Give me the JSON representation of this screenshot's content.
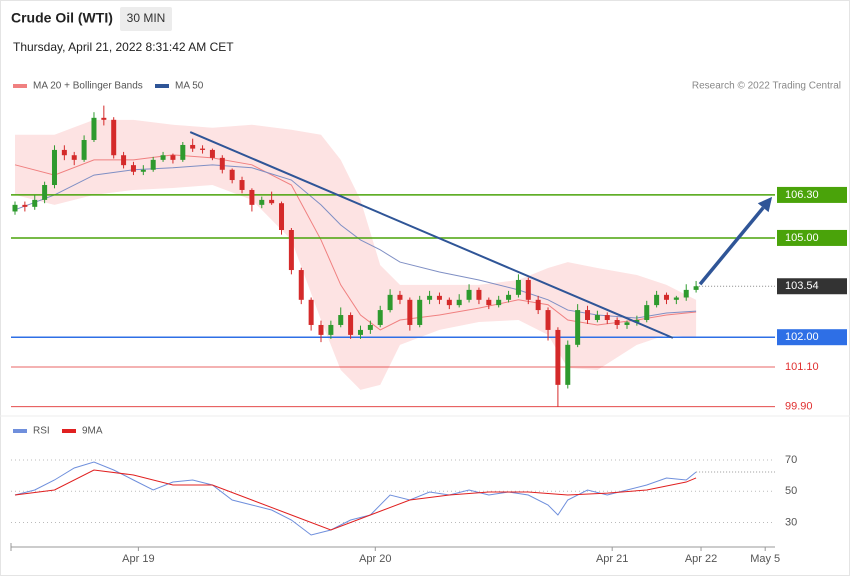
{
  "chart_data": {
    "type": "candlestick",
    "title": "Crude Oil (WTI)",
    "timeframe": "30 MIN",
    "subtitle": "Thursday, April 21, 2022 8:31:42 AM CET",
    "credit": "Research © 2022 Trading Central",
    "xlim": [
      0,
      155
    ],
    "xticks": [
      {
        "value": 25,
        "label": "Apr 19"
      },
      {
        "value": 73,
        "label": "Apr 20"
      },
      {
        "value": 121,
        "label": "Apr 21"
      },
      {
        "value": 139,
        "label": "Apr 22"
      },
      {
        "value": 152,
        "label": "May 5"
      }
    ],
    "ylim": [
      99.8,
      109.32
    ],
    "up_color": "#2e9a2e",
    "down_color": "#d42a2a",
    "x": [
      0,
      2,
      4,
      6,
      8,
      10,
      12,
      14,
      16,
      18,
      20,
      22,
      24,
      26,
      28,
      30,
      32,
      34,
      36,
      38,
      40,
      42,
      44,
      46,
      48,
      50,
      52,
      54,
      56,
      58,
      60,
      62,
      64,
      66,
      68,
      70,
      72,
      74,
      76,
      78,
      80,
      82,
      84,
      86,
      88,
      90,
      92,
      94,
      96,
      98,
      100,
      102,
      104,
      106,
      108,
      110,
      112,
      114,
      116,
      118,
      120,
      122,
      124,
      126,
      128,
      130,
      132,
      134,
      136,
      138
    ],
    "open": [
      105.8,
      106.0,
      105.94,
      106.15,
      106.6,
      107.66,
      107.5,
      107.36,
      107.96,
      108.63,
      108.57,
      107.5,
      107.2,
      107.0,
      107.06,
      107.36,
      107.5,
      107.36,
      107.81,
      107.7,
      107.66,
      107.42,
      107.06,
      106.75,
      106.45,
      106.0,
      106.15,
      106.05,
      105.24,
      104.03,
      103.13,
      102.37,
      102.07,
      102.37,
      102.67,
      102.07,
      102.22,
      102.37,
      102.82,
      103.28,
      103.13,
      102.37,
      103.13,
      103.25,
      103.13,
      102.97,
      103.13,
      103.43,
      103.13,
      102.97,
      103.13,
      103.28,
      103.73,
      103.13,
      102.82,
      102.22,
      100.56,
      101.77,
      102.82,
      102.52,
      102.67,
      102.52,
      102.37,
      102.45,
      102.52,
      102.97,
      103.28,
      103.13,
      103.2,
      103.43
    ],
    "high": [
      106.1,
      106.1,
      106.3,
      106.7,
      107.8,
      107.8,
      107.6,
      108.1,
      108.8,
      109.0,
      108.65,
      107.6,
      107.3,
      107.2,
      107.45,
      107.6,
      107.55,
      107.9,
      108.0,
      107.8,
      107.7,
      107.5,
      107.1,
      106.85,
      106.5,
      106.25,
      106.4,
      106.1,
      105.3,
      104.1,
      103.2,
      102.5,
      102.5,
      102.9,
      102.75,
      102.35,
      102.5,
      102.95,
      103.45,
      103.4,
      103.2,
      103.25,
      103.4,
      103.35,
      103.2,
      103.3,
      103.6,
      103.5,
      103.2,
      103.25,
      103.4,
      103.9,
      103.8,
      103.25,
      102.9,
      102.3,
      101.9,
      103.0,
      102.95,
      102.8,
      102.75,
      102.6,
      102.5,
      102.65,
      103.1,
      103.4,
      103.35,
      103.25,
      103.6,
      103.7
    ],
    "low": [
      105.7,
      105.8,
      105.85,
      106.05,
      106.5,
      107.35,
      107.2,
      107.3,
      107.9,
      108.4,
      107.4,
      107.1,
      106.9,
      106.9,
      107.0,
      107.3,
      107.25,
      107.3,
      107.6,
      107.55,
      107.35,
      106.95,
      106.65,
      106.35,
      105.8,
      105.9,
      106.0,
      105.1,
      103.9,
      103.0,
      102.2,
      101.85,
      101.95,
      102.3,
      101.95,
      101.95,
      102.1,
      102.3,
      102.75,
      103.0,
      102.2,
      102.3,
      103.0,
      103.0,
      102.85,
      102.9,
      103.05,
      103.0,
      102.85,
      102.9,
      103.05,
      103.2,
      103.0,
      102.7,
      101.9,
      99.9,
      100.45,
      101.7,
      102.4,
      102.45,
      102.4,
      102.25,
      102.25,
      102.35,
      102.45,
      102.9,
      103.0,
      103.0,
      103.1,
      103.35
    ],
    "close": [
      106.0,
      105.94,
      106.15,
      106.6,
      107.66,
      107.5,
      107.36,
      107.96,
      108.63,
      108.57,
      107.5,
      107.2,
      107.0,
      107.06,
      107.36,
      107.5,
      107.36,
      107.81,
      107.7,
      107.66,
      107.42,
      107.06,
      106.75,
      106.45,
      106.0,
      106.15,
      106.05,
      105.24,
      104.03,
      103.13,
      102.37,
      102.07,
      102.37,
      102.67,
      102.07,
      102.22,
      102.37,
      102.82,
      103.28,
      103.13,
      102.37,
      103.13,
      103.25,
      103.13,
      102.97,
      103.13,
      103.43,
      103.13,
      102.97,
      103.13,
      103.28,
      103.73,
      103.13,
      102.82,
      102.22,
      100.56,
      101.77,
      102.82,
      102.52,
      102.67,
      102.52,
      102.37,
      102.45,
      102.52,
      102.97,
      103.28,
      103.13,
      103.2,
      103.43,
      103.54
    ],
    "overlay_x": [
      0,
      8,
      16,
      24,
      32,
      40,
      48,
      56,
      62,
      66,
      70,
      74,
      78,
      86,
      94,
      102,
      108,
      112,
      118,
      126,
      132,
      138
    ],
    "bands": {
      "name": "MA 20 + Bollinger Bands",
      "color": "#f08080",
      "fill": "#fde3e3",
      "upper": [
        108.12,
        108.12,
        108.57,
        108.57,
        108.42,
        108.33,
        108.42,
        108.27,
        108.12,
        107.36,
        106.15,
        104.18,
        103.58,
        103.58,
        103.58,
        103.73,
        104.09,
        104.27,
        104.09,
        103.88,
        103.58,
        103.13
      ],
      "lower": [
        106.3,
        106.0,
        106.3,
        106.45,
        106.51,
        106.6,
        106.15,
        104.94,
        102.52,
        101.01,
        100.41,
        100.56,
        101.77,
        102.22,
        102.46,
        102.52,
        102.07,
        101.07,
        101.01,
        101.77,
        102.07,
        101.98
      ],
      "values": [
        107.21,
        106.9,
        107.36,
        107.36,
        107.51,
        107.42,
        107.21,
        106.6,
        104.94,
        103.58,
        102.67,
        102.22,
        102.52,
        102.67,
        102.88,
        103.13,
        102.98,
        102.52,
        102.37,
        102.52,
        102.67,
        102.76
      ]
    },
    "ma50": {
      "name": "MA 50",
      "color": "#2f5597",
      "line_color": "#7f8fc4",
      "values": [
        105.85,
        106.3,
        106.9,
        107.06,
        107.12,
        107.21,
        107.12,
        106.75,
        106.0,
        105.39,
        104.94,
        104.64,
        104.27,
        103.97,
        103.73,
        103.43,
        103.13,
        102.82,
        102.67,
        102.58,
        102.73,
        102.79
      ]
    },
    "trendline": {
      "color": "#2f5597",
      "x": [
        35.5,
        133.3
      ],
      "y": [
        108.2,
        101.98
      ]
    },
    "arrow": {
      "color": "#2f5597",
      "x": [
        138.8,
        153.4
      ],
      "y": [
        103.6,
        106.24
      ]
    },
    "levels": [
      {
        "value": 106.3,
        "label": "106.30",
        "color": "#4aa30a",
        "style": "box"
      },
      {
        "value": 105.0,
        "label": "105.00",
        "color": "#4aa30a",
        "style": "box"
      },
      {
        "value": 103.54,
        "label": "103.54",
        "color": "#333333",
        "style": "current"
      },
      {
        "value": 102.0,
        "label": "102.00",
        "color": "#2e6fe6",
        "style": "box"
      },
      {
        "value": 101.1,
        "label": "101.10",
        "color": "#e03030",
        "style": "text"
      },
      {
        "value": 99.9,
        "label": "99.90",
        "color": "#e03030",
        "style": "text"
      }
    ],
    "rsi": {
      "ylim": [
        15.6,
        82.8
      ],
      "yticks": [
        70,
        50,
        30
      ],
      "x": [
        0,
        4,
        8,
        12,
        16,
        20,
        24,
        28,
        32,
        36,
        40,
        44,
        48,
        52,
        56,
        60,
        64,
        68,
        72,
        76,
        80,
        84,
        88,
        92,
        96,
        100,
        104,
        108,
        110,
        112,
        116,
        120,
        124,
        128,
        132,
        136,
        138
      ],
      "series": [
        {
          "name": "RSI",
          "color": "#6f8fdc",
          "values": [
            47.6,
            50.8,
            57.2,
            64.9,
            68.7,
            63.6,
            57.2,
            50.8,
            55.9,
            57.2,
            54,
            44.4,
            41.2,
            38,
            31.6,
            22,
            25.2,
            31.6,
            34.8,
            47.6,
            44.4,
            49.5,
            47.6,
            50.8,
            47.6,
            49.5,
            47.6,
            41.2,
            34.8,
            44.4,
            50.8,
            47.6,
            50.8,
            54,
            58.5,
            57.2,
            62.3
          ]
        },
        {
          "name": "9MA",
          "color": "#e02020",
          "x": [
            0,
            8,
            16,
            24,
            32,
            40,
            48,
            56,
            64,
            72,
            80,
            88,
            96,
            104,
            112,
            120,
            128,
            136,
            138
          ],
          "values": [
            47.6,
            50.8,
            63.6,
            60.4,
            54,
            54,
            44.4,
            34.8,
            25.2,
            34.8,
            44.4,
            47.6,
            49.5,
            49.5,
            47.6,
            48.8,
            50.8,
            55.9,
            58.5
          ]
        }
      ]
    }
  }
}
